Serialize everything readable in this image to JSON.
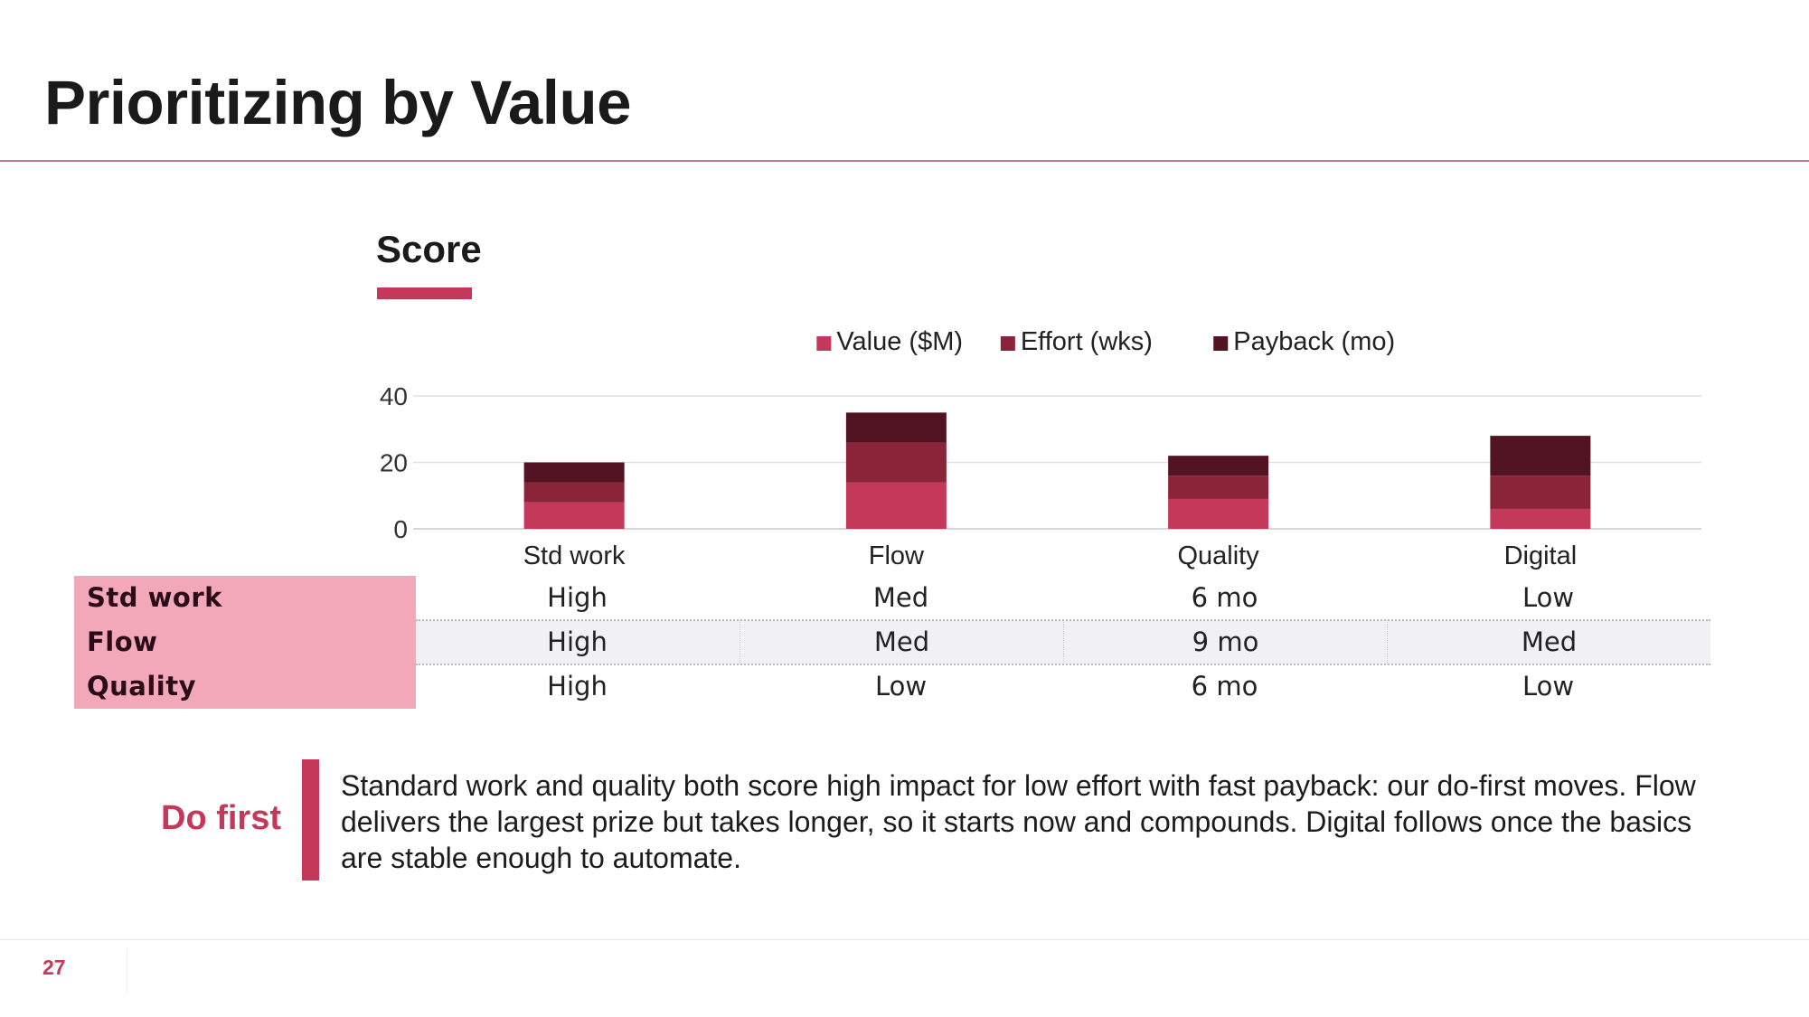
{
  "slide": {
    "title": "Prioritizing by Value",
    "score_heading": "Score",
    "page_number": "27",
    "callout_label": "Do first",
    "takeaway": "Standard work and quality both score high impact for low effort with fast payback: our do-first moves. Flow delivers the largest prize but takes longer, so it starts now and compounds. Digital follows once the basics are stable enough to automate."
  },
  "colors": {
    "accent": "#c4385a",
    "value": "#c4385a",
    "effort": "#8a2438",
    "payback": "#521422",
    "row_header_bg": "#f2a8b8"
  },
  "chart_data": {
    "type": "bar",
    "stacked": true,
    "categories": [
      "Std work",
      "Flow",
      "Quality",
      "Digital"
    ],
    "series": [
      {
        "name": "Value ($M)",
        "values": [
          8,
          14,
          9,
          6
        ],
        "color": "#c4385a"
      },
      {
        "name": "Effort (wks)",
        "values": [
          6,
          12,
          7,
          10
        ],
        "color": "#8a2438"
      },
      {
        "name": "Payback (mo)",
        "values": [
          6,
          9,
          6,
          12
        ],
        "color": "#521422"
      }
    ],
    "yticks": [
      "0",
      "20",
      "40"
    ],
    "ylim": [
      0,
      40
    ],
    "grid": true,
    "legend_position": "top-center"
  },
  "table": {
    "rows": [
      {
        "label": "Std work",
        "cells": [
          "High",
          "Med",
          "6 mo",
          "Low"
        ]
      },
      {
        "label": "Flow",
        "cells": [
          "High",
          "Med",
          "9 mo",
          "Med"
        ]
      },
      {
        "label": "Quality",
        "cells": [
          "High",
          "Low",
          "6 mo",
          "Low"
        ]
      }
    ]
  }
}
